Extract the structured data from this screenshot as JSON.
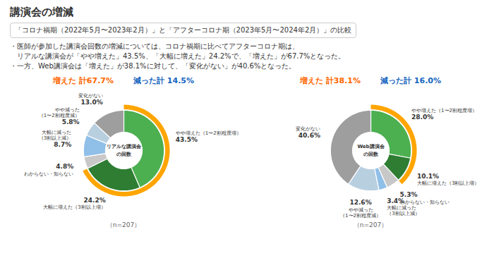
{
  "title": "講演会の増減",
  "subtitle": "「コロナ禍期（2022年5月〜2023年2月）」と「アフターコロナ期（2023年5月〜2024年2月）」の比較",
  "notes": [
    "・医師が参加した講演会回数の増減については、コロナ禍期に比べてアフターコロナ期は、",
    "　リアルな講演会が「やや増えた」43.5%、「大幅に増えた」24.2%で、「増えた」が67.7%となった。",
    "・一方、Web講演会は「増えた」が38.1%に対して、「変化がない」が40.6%となった。"
  ],
  "chart_data": [
    {
      "type": "pie",
      "center_label": [
        "リアルな講演会",
        "の回数"
      ],
      "categories": [
        "やや増えた（1〜2割程度増）",
        "大幅に増えた（3割以上増）",
        "わからない・知らない",
        "大幅に減った\n（3割以上減）",
        "やや減った\n（1〜2割程度減）",
        "変化がない"
      ],
      "values": [
        43.5,
        24.2,
        4.8,
        8.7,
        5.8,
        13.0
      ],
      "value_labels": [
        "43.5%",
        "24.2%",
        "4.8%",
        "8.7%",
        "5.8%",
        "13.0%"
      ],
      "colors": [
        "#4caf50",
        "#2e7d32",
        "#c8c8c8",
        "#90bfe8",
        "#b8cfe0",
        "#9e9e9e"
      ],
      "data_labels": true,
      "increased_total": 67.7,
      "increased_color": "#FFA500",
      "annotations": [
        {
          "text": "増えた 計67.7%",
          "color": "#FF6600"
        },
        {
          "text": "減った計 14.5%",
          "color": "#1565C0"
        }
      ],
      "caption": "（n=207）"
    },
    {
      "type": "pie",
      "center_label": [
        "Web講演会",
        "の回数"
      ],
      "categories": [
        "やや増えた（1〜2割程度増）",
        "大幅に増えた（3割以上増）",
        "わからない・知らない",
        "大幅に減った\n（3割以上減）",
        "やや減った\n（1〜2割程度減）",
        "変化がない"
      ],
      "values": [
        28.0,
        10.1,
        5.3,
        3.4,
        12.6,
        40.6
      ],
      "value_labels": [
        "28.0%",
        "10.1%",
        "5.3%",
        "3.4%",
        "12.6%",
        "40.6%"
      ],
      "colors": [
        "#4caf50",
        "#2e7d32",
        "#c8c8c8",
        "#90bfe8",
        "#b8cfe0",
        "#9e9e9e"
      ],
      "data_labels": true,
      "increased_total": 38.1,
      "increased_color": "#FFA500",
      "annotations": [
        {
          "text": "増えた 計38.1%",
          "color": "#FF6600"
        },
        {
          "text": "減った計 16.0%",
          "color": "#1565C0"
        }
      ],
      "caption": "（n=207）"
    }
  ]
}
